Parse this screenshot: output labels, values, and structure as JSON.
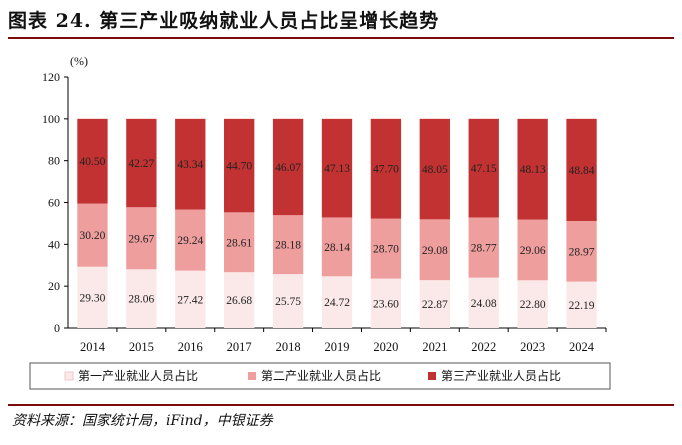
{
  "header": {
    "title": "图表 24. 第三产业吸纳就业人员占比呈增长趋势"
  },
  "footer": {
    "source": "资料来源：国家统计局，iFind，中银证券"
  },
  "chart_data": {
    "type": "bar",
    "stacked": true,
    "unit_label": "(%)",
    "categories": [
      "2014",
      "2015",
      "2016",
      "2017",
      "2018",
      "2019",
      "2020",
      "2021",
      "2022",
      "2023",
      "2024"
    ],
    "series": [
      {
        "name": "第一产业就业人员占比",
        "color": "#fbe9e9",
        "values": [
          29.3,
          28.06,
          27.42,
          26.68,
          25.75,
          24.72,
          23.6,
          22.87,
          24.08,
          22.8,
          22.19
        ]
      },
      {
        "name": "第二产业就业人员占比",
        "color": "#ef9e9e",
        "values": [
          30.2,
          29.67,
          29.24,
          28.61,
          28.18,
          28.14,
          28.7,
          29.08,
          28.77,
          29.06,
          28.97
        ]
      },
      {
        "name": "第三产业就业人员占比",
        "color": "#c23232",
        "values": [
          40.5,
          42.27,
          43.34,
          44.7,
          46.07,
          47.13,
          47.7,
          48.05,
          47.15,
          48.13,
          48.84
        ]
      }
    ],
    "value_labels": [
      [
        "29.30",
        "28.06",
        "27.42",
        "26.68",
        "25.75",
        "24.72",
        "23.60",
        "22.87",
        "24.08",
        "22.80",
        "22.19"
      ],
      [
        "30.20",
        "29.67",
        "29.24",
        "28.61",
        "28.18",
        "28.14",
        "28.70",
        "29.08",
        "28.77",
        "29.06",
        "28.97"
      ],
      [
        "40.50",
        "42.27",
        "43.34",
        "44.70",
        "46.07",
        "47.13",
        "47.70",
        "48.05",
        "47.15",
        "48.13",
        "48.84"
      ]
    ],
    "ylim": [
      0,
      120
    ],
    "yticks": [
      0,
      20,
      40,
      60,
      80,
      100,
      120
    ],
    "legend_position": "bottom"
  }
}
